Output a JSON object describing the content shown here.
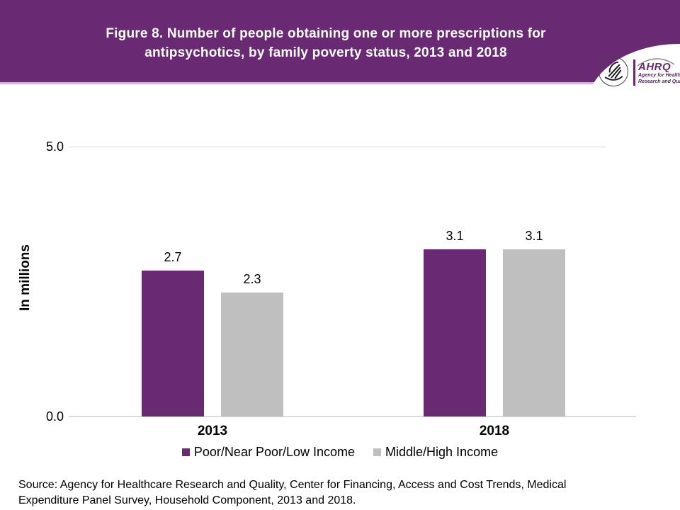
{
  "header": {
    "title_line1": "Figure 8. Number of people obtaining one or more prescriptions for",
    "title_line2": "antipsychotics, by family poverty status, 2013 and 2018",
    "logo": {
      "org": "AHRQ",
      "tagline_line1": "Agency for Healthcare",
      "tagline_line2": "Research and Quality"
    }
  },
  "colors": {
    "header_bg": "#692a73",
    "header_edge": "#cfb5d8",
    "poor_series": "#692a73",
    "middle_series": "#bfbfbf",
    "gridline": "#d9d9d9"
  },
  "chart_data": {
    "type": "bar",
    "title": "Figure 8. Number of people obtaining one or more prescriptions for antipsychotics, by family poverty status, 2013 and 2018",
    "categories": [
      "2013",
      "2018"
    ],
    "series": [
      {
        "name": "Poor/Near Poor/Low Income",
        "color": "#692a73",
        "values": [
          2.7,
          3.1
        ]
      },
      {
        "name": "Middle/High Income",
        "color": "#bfbfbf",
        "values": [
          2.3,
          3.1
        ]
      }
    ],
    "value_labels": [
      [
        "2.7",
        "3.1"
      ],
      [
        "2.3",
        "3.1"
      ]
    ],
    "ylabel": "In millions",
    "ylim": [
      0.0,
      5.0
    ],
    "ytick_labels": [
      "5.0",
      "0.0"
    ],
    "grid": "single horizontal gridline at 5.0; baseline at 0.0",
    "legend_position": "bottom-center"
  },
  "source": {
    "line1": "Source: Agency for Healthcare Research and Quality, Center for Financing, Access and Cost Trends, Medical",
    "line2": "Expenditure Panel Survey, Household Component, 2013 and 2018."
  }
}
